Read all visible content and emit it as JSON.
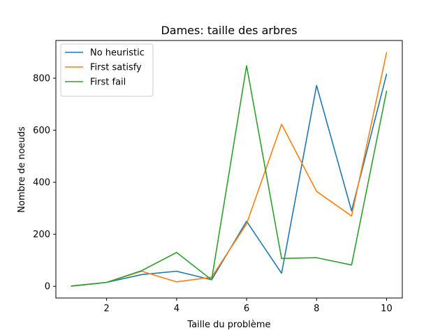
{
  "chart_data": {
    "type": "line",
    "title": "Dames: taille des arbres",
    "xlabel": "Taille du problème",
    "ylabel": "Nombre de noeuds",
    "x": [
      1,
      2,
      3,
      4,
      5,
      6,
      7,
      8,
      9,
      10
    ],
    "xlim": [
      0.55,
      10.45
    ],
    "ylim": [
      -45,
      945
    ],
    "xticks": [
      2,
      4,
      6,
      8,
      10
    ],
    "yticks": [
      0,
      200,
      400,
      600,
      800
    ],
    "grid": false,
    "legend": "top-left",
    "series": [
      {
        "name": "No heuristic",
        "color": "#1f77b4",
        "values": [
          1,
          15,
          45,
          58,
          25,
          250,
          50,
          772,
          290,
          815
        ]
      },
      {
        "name": "First satisfy",
        "color": "#ff7f0e",
        "values": [
          1,
          15,
          58,
          17,
          35,
          240,
          623,
          365,
          270,
          898
        ]
      },
      {
        "name": "First fail",
        "color": "#2ca02c",
        "values": [
          1,
          15,
          60,
          130,
          25,
          848,
          107,
          110,
          82,
          750
        ]
      }
    ]
  }
}
